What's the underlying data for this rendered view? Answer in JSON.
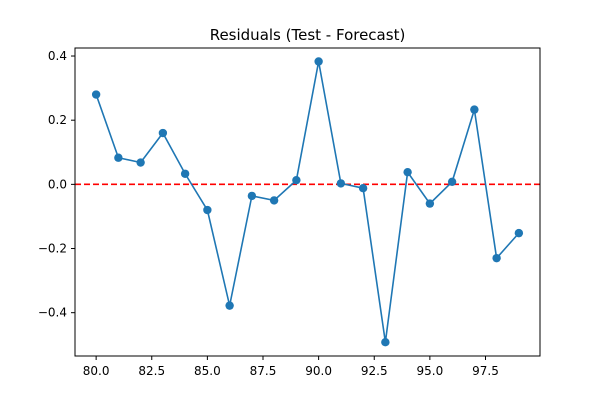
{
  "chart_data": {
    "type": "line",
    "title": "Residuals (Test - Forecast)",
    "xlabel": "",
    "ylabel": "",
    "xlim": [
      79.05,
      99.95
    ],
    "ylim": [
      -0.535,
      0.425
    ],
    "grid": false,
    "legend": "none",
    "x_ticks": [
      80.0,
      82.5,
      85.0,
      87.5,
      90.0,
      92.5,
      95.0,
      97.5
    ],
    "x_tick_labels": [
      "80.0",
      "82.5",
      "85.0",
      "87.5",
      "90.0",
      "92.5",
      "95.0",
      "97.5"
    ],
    "y_ticks": [
      0.4,
      0.2,
      0.0,
      -0.2,
      -0.4
    ],
    "y_tick_labels": [
      "0.4",
      "0.2",
      "0.0",
      "−0.2",
      "−0.4"
    ],
    "series": [
      {
        "color": "#1f77b4",
        "marker": "circle",
        "x": [
          80,
          81,
          82,
          83,
          84,
          85,
          86,
          87,
          88,
          89,
          90,
          91,
          92,
          93,
          94,
          95,
          96,
          97,
          98,
          99
        ],
        "y": [
          0.28,
          0.083,
          0.068,
          0.16,
          0.033,
          -0.08,
          -0.378,
          -0.036,
          -0.05,
          0.013,
          0.383,
          0.003,
          -0.012,
          -0.492,
          0.038,
          -0.06,
          0.008,
          0.233,
          -0.23,
          -0.152
        ]
      }
    ],
    "reference_line": {
      "y": 0.0,
      "color": "#ff0000",
      "style": "dashed"
    }
  }
}
